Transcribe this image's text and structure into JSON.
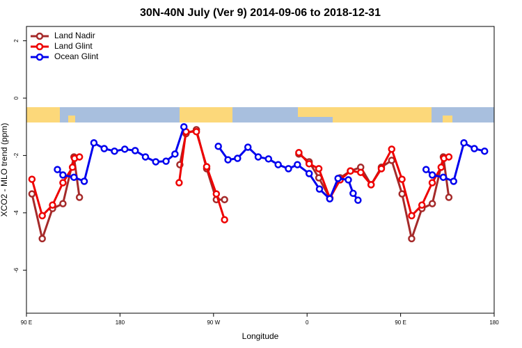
{
  "chart_data": {
    "type": "line",
    "title": "30N-40N July (Ver 9)   2014-09-06 to 2018-12-31",
    "x_label": "Longitude",
    "y_label": "XCO2 - MLO trend (ppm)",
    "xlim": [
      90,
      540
    ],
    "ylim": [
      -7.5,
      2.5
    ],
    "xticks": [
      {
        "value": 90,
        "label": "90 E"
      },
      {
        "value": 180,
        "label": "180"
      },
      {
        "value": 270,
        "label": "90 W"
      },
      {
        "value": 360,
        "label": "0"
      },
      {
        "value": 450,
        "label": "90 E"
      },
      {
        "value": 540,
        "label": "180"
      }
    ],
    "yticks": [
      2,
      0,
      -2,
      -4,
      -6
    ],
    "legend": "top-left",
    "series": [
      {
        "name": "Land Nadir",
        "color": "#a52a2a",
        "x": [
          95.3,
          105.2,
          115.1,
          125.1,
          135.7,
          141.0,
          null,
          237.6,
          243.5,
          253.5,
          263.4,
          272.7,
          280.6,
          null,
          352.1,
          362.0,
          371.3,
          381.9,
          391.8,
          401.7,
          411.6,
          421.6,
          431.5,
          441.4,
          451.4,
          460.6,
          470.5,
          480.5,
          491.1,
          496.4
        ],
        "values": [
          -3.34,
          -4.9,
          -3.85,
          -3.68,
          -2.05,
          -3.46,
          null,
          -2.32,
          -1.24,
          -1.1,
          -2.46,
          -3.54,
          -3.54,
          null,
          -1.95,
          -2.22,
          -2.78,
          -3.49,
          -2.78,
          -2.54,
          -2.41,
          -3.02,
          -2.41,
          -2.17,
          -3.34,
          -4.9,
          -3.85,
          -3.68,
          -2.05,
          -3.46
        ]
      },
      {
        "name": "Land Glint",
        "color": "#ee0000",
        "x": [
          95.3,
          105.2,
          115.1,
          125.1,
          134.3,
          136.3,
          141.0,
          null,
          236.9,
          243.5,
          253.5,
          263.4,
          272.7,
          280.6,
          null,
          352.1,
          362.0,
          371.3,
          381.9,
          391.8,
          401.7,
          411.6,
          421.6,
          431.5,
          441.4,
          451.3,
          460.6,
          470.5,
          480.4,
          489.0,
          491.7,
          496.4
        ],
        "values": [
          -2.83,
          -4.1,
          -3.73,
          -2.95,
          -2.41,
          -2.1,
          -2.05,
          null,
          -2.95,
          -1.17,
          -1.17,
          -2.39,
          -3.34,
          -4.24,
          null,
          -1.9,
          -2.29,
          -2.46,
          -3.49,
          -2.85,
          -2.54,
          -2.59,
          -3.02,
          -2.46,
          -1.78,
          -2.83,
          -4.1,
          -3.73,
          -2.95,
          -2.41,
          -2.1,
          -2.05
        ]
      },
      {
        "name": "Ocean Glint",
        "color": "#0000ee",
        "x": [
          119.8,
          125.1,
          135.7,
          145.6,
          154.9,
          164.8,
          174.7,
          184.6,
          194.6,
          204.5,
          214.4,
          224.3,
          232.9,
          241.5,
          null,
          274.6,
          283.9,
          293.1,
          303.1,
          313.0,
          322.9,
          332.2,
          342.1,
          350.7,
          362.0,
          371.9,
          381.8,
          389.8,
          399.7,
          404.3,
          409.0,
          null,
          474.5,
          480.5,
          491.1,
          501.0,
          510.9,
          520.9,
          530.8
        ],
        "values": [
          -2.49,
          -2.68,
          -2.76,
          -2.9,
          -1.56,
          -1.76,
          -1.85,
          -1.78,
          -1.83,
          -2.05,
          -2.22,
          -2.2,
          -1.95,
          -1.0,
          null,
          -1.68,
          -2.15,
          -2.1,
          -1.71,
          -2.05,
          -2.12,
          -2.32,
          -2.46,
          -2.32,
          -2.63,
          -3.17,
          -3.51,
          -2.8,
          -2.85,
          -3.32,
          -3.56,
          null,
          -2.49,
          -2.68,
          -2.76,
          -2.9,
          -1.56,
          -1.76,
          -1.85
        ]
      }
    ]
  }
}
